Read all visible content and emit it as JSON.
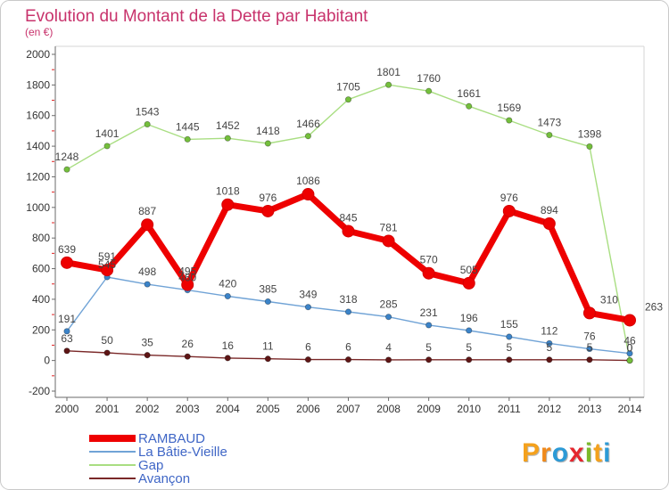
{
  "chart_data": {
    "type": "line",
    "title": "Evolution du Montant de la Dette par Habitant",
    "subtitle": "(en €)",
    "x": [
      2000,
      2001,
      2002,
      2003,
      2004,
      2005,
      2006,
      2007,
      2008,
      2009,
      2010,
      2011,
      2012,
      2013,
      2014
    ],
    "ylim": [
      -200,
      2000
    ],
    "yticks": [
      -200,
      0,
      200,
      400,
      600,
      800,
      1000,
      1200,
      1400,
      1600,
      1800,
      2000
    ],
    "grid": false,
    "legend_position": "bottom-left",
    "series": [
      {
        "name": "RAMBAUD",
        "color": "#ee0000",
        "marker_color": "#d40000",
        "values": [
          639,
          591,
          887,
          495,
          1018,
          976,
          1086,
          845,
          781,
          570,
          505,
          976,
          894,
          310,
          263
        ]
      },
      {
        "name": "La Bâtie-Vieille",
        "color": "#70a3d6",
        "marker_color": "#3b83c8",
        "values": [
          191,
          545,
          498,
          460,
          420,
          385,
          349,
          318,
          285,
          231,
          196,
          155,
          112,
          76,
          46
        ]
      },
      {
        "name": "Gap",
        "color": "#a9de82",
        "marker_color": "#74bf3c",
        "values": [
          1248,
          1401,
          1543,
          1445,
          1452,
          1418,
          1466,
          1705,
          1801,
          1760,
          1661,
          1569,
          1473,
          1398,
          0
        ]
      },
      {
        "name": "Avançon",
        "color": "#7a2828",
        "marker_color": "#5e1515",
        "values": [
          63,
          50,
          35,
          26,
          16,
          11,
          6,
          6,
          4,
          5,
          5,
          5,
          5,
          5,
          0
        ]
      }
    ]
  },
  "logo": {
    "text": "Proxiti",
    "letter_colors": [
      "#f4a11d",
      "#f08a1c",
      "#2c9ad6",
      "#e5262e",
      "#7bb92a",
      "#f4a11d",
      "#2c9ad6"
    ]
  }
}
